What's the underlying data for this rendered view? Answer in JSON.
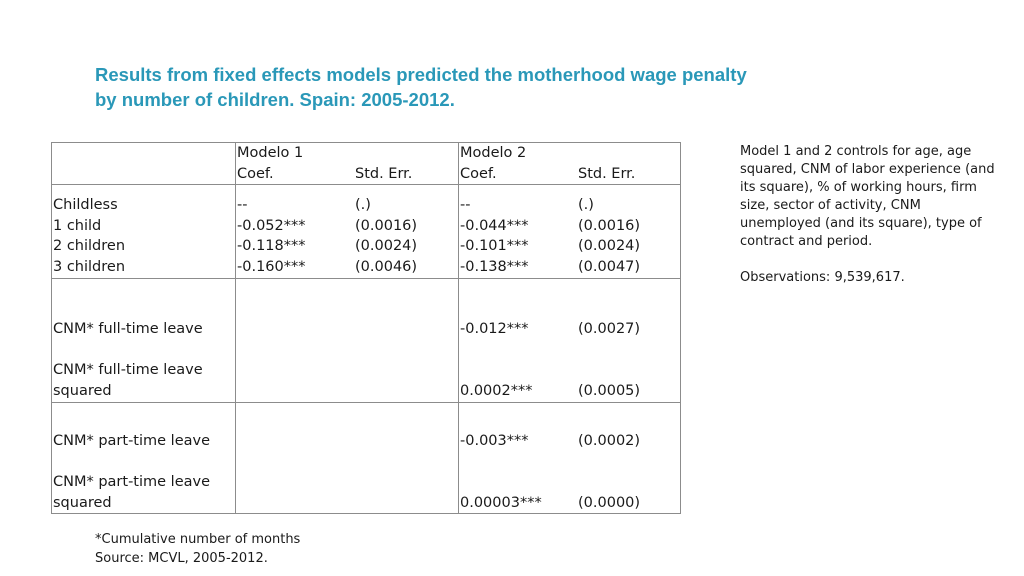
{
  "title": {
    "line1": "Results from fixed effects models predicted the motherhood wage penalty",
    "line2": "by number of children. Spain: 2005-2012."
  },
  "table": {
    "header": {
      "model1": "Modelo 1",
      "model2": "Modelo 2",
      "coef": "Coef.",
      "stderr": "Std. Err."
    },
    "children_rows": [
      {
        "label": "Childless",
        "m1_coef": "--",
        "m1_se": "(.)",
        "m2_coef": "--",
        "m2_se": "(.)"
      },
      {
        "label": "1 child",
        "m1_coef": "-0.052***",
        "m1_se": "(0.0016)",
        "m2_coef": "-0.044***",
        "m2_se": "(0.0016)"
      },
      {
        "label": "2 children",
        "m1_coef": "-0.118***",
        "m1_se": "(0.0024)",
        "m2_coef": "-0.101***",
        "m2_se": "(0.0024)"
      },
      {
        "label": "3 children",
        "m1_coef": "-0.160***",
        "m1_se": "(0.0046)",
        "m2_coef": "-0.138***",
        "m2_se": "(0.0047)"
      }
    ],
    "fulltime": {
      "label1": "CNM* full-time leave",
      "coef1": "-0.012***",
      "se1": "(0.0027)",
      "label2a": "CNM* full-time leave",
      "label2b": "squared",
      "coef2": "0.0002***",
      "se2": "(0.0005)"
    },
    "parttime": {
      "label1": "CNM* part-time leave",
      "coef1": "-0.003***",
      "se1": "(0.0002)",
      "label2a": "CNM* part-time leave",
      "label2b": "squared",
      "coef2": "0.00003***",
      "se2": "(0.0000)"
    }
  },
  "note": {
    "controls": "Model 1  and 2 controls for age, age squared, CNM of labor experience (and its square), % of working hours, firm size, sector of activity, CNM unemployed (and its square), type of contract and period.",
    "observations": "Observations: 9,539,617."
  },
  "footer": {
    "line1": "*Cumulative number of months",
    "line2": "Source: MCVL, 2005-2012."
  }
}
